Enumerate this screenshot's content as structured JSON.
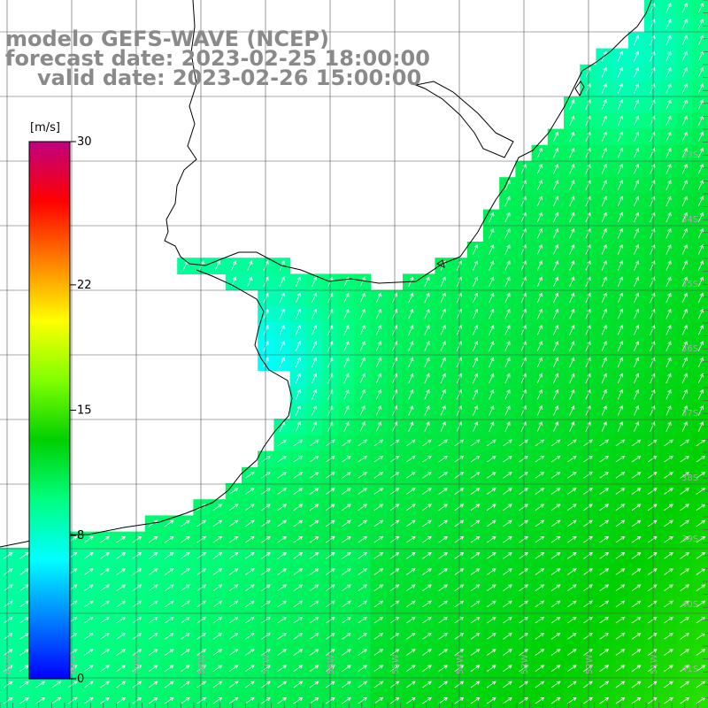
{
  "title": {
    "line1": "modelo GEFS-WAVE (NCEP)",
    "line2": "forecast date: 2023-02-25 18:00:00",
    "line3": "valid date: 2023-02-26 15:00:00"
  },
  "colorbar": {
    "unit_label": "[m/s]",
    "ticks": [
      "30",
      "22",
      "15",
      "8",
      "0"
    ],
    "tick_values": [
      30,
      22,
      15,
      8,
      0
    ],
    "min": 0,
    "max": 30,
    "colors": [
      "#0000ff",
      "#0080ff",
      "#00ffff",
      "#00ff80",
      "#00d000",
      "#80ff00",
      "#ffff00",
      "#ff8000",
      "#ff0000",
      "#c00080"
    ]
  },
  "map": {
    "lat_labels": [
      "33S",
      "34S",
      "35S",
      "36S",
      "37S",
      "38S",
      "39S",
      "40S",
      "41S"
    ],
    "lon_labels": [
      "61W",
      "60W",
      "59W",
      "58W",
      "57W",
      "56W",
      "55W",
      "54W",
      "53W",
      "52W",
      "51W"
    ],
    "field": "wind speed",
    "wind_direction": "toward north-east"
  }
}
